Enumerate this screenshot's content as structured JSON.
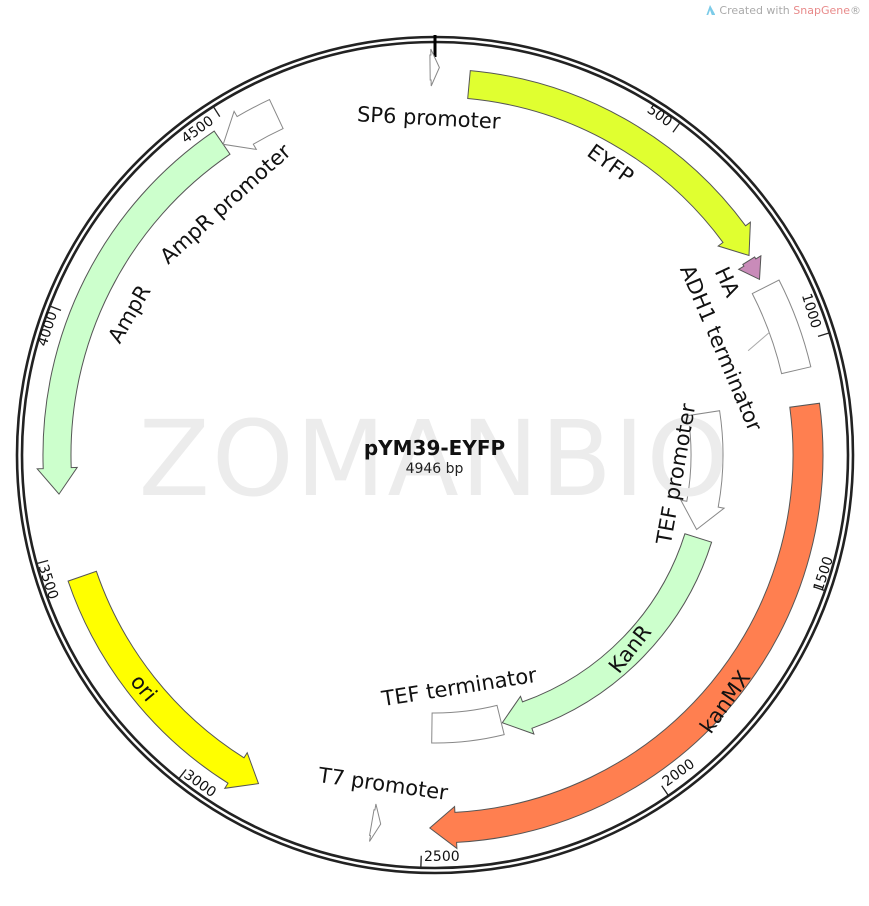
{
  "credit": {
    "prefix": "Created with ",
    "brand": "SnapGene",
    "suffix": "®"
  },
  "watermark": "ZOMANBIO",
  "plasmid": {
    "name": "pYM39-EYFP",
    "length_label": "4946 bp",
    "length": 4946
  },
  "ticks": [
    500,
    1000,
    1500,
    2000,
    2500,
    3000,
    3500,
    4000,
    4500
  ],
  "tick_labels": [
    "500",
    "1000",
    "1500",
    "2000",
    "2500",
    "3000",
    "3500",
    "4000",
    "4500"
  ],
  "features": [
    {
      "name": "SP6 promoter",
      "start": 4936,
      "end": 4955,
      "direction": "forward",
      "color": "#ffffff"
    },
    {
      "name": "EYFP",
      "start": 72,
      "end": 791,
      "direction": "forward",
      "color": "#e0ff30"
    },
    {
      "name": "HA",
      "start": 800,
      "end": 846,
      "direction": "forward",
      "color": "#c98bb9"
    },
    {
      "name": "ADH1 terminator",
      "start": 866,
      "end": 1055,
      "direction": "none",
      "color": "#ffffff"
    },
    {
      "name": "kanMX",
      "start": 1131,
      "end": 2484,
      "direction": "forward",
      "color": "#ff7f50"
    },
    {
      "name": "TEF promoter",
      "start": 1115,
      "end": 1455,
      "direction": "forward",
      "color": "#ffffff"
    },
    {
      "name": "KanR",
      "start": 1477,
      "end": 2279,
      "direction": "forward",
      "color": "#ccffcc"
    },
    {
      "name": "TEF terminator",
      "start": 2282,
      "end": 2482,
      "direction": "none",
      "color": "#ffffff"
    },
    {
      "name": "T7 promoter",
      "start": 2588,
      "end": 2607,
      "direction": "reverse",
      "color": "#ffffff"
    },
    {
      "name": "ori",
      "start": 2861,
      "end": 3449,
      "direction": "reverse",
      "color": "#ffff00"
    },
    {
      "name": "AmpR",
      "start": 3628,
      "end": 4475,
      "direction": "reverse",
      "color": "#ccffcc"
    },
    {
      "name": "AmpR promoter",
      "start": 4475,
      "end": 4603,
      "direction": "reverse",
      "color": "#ffffff"
    }
  ]
}
